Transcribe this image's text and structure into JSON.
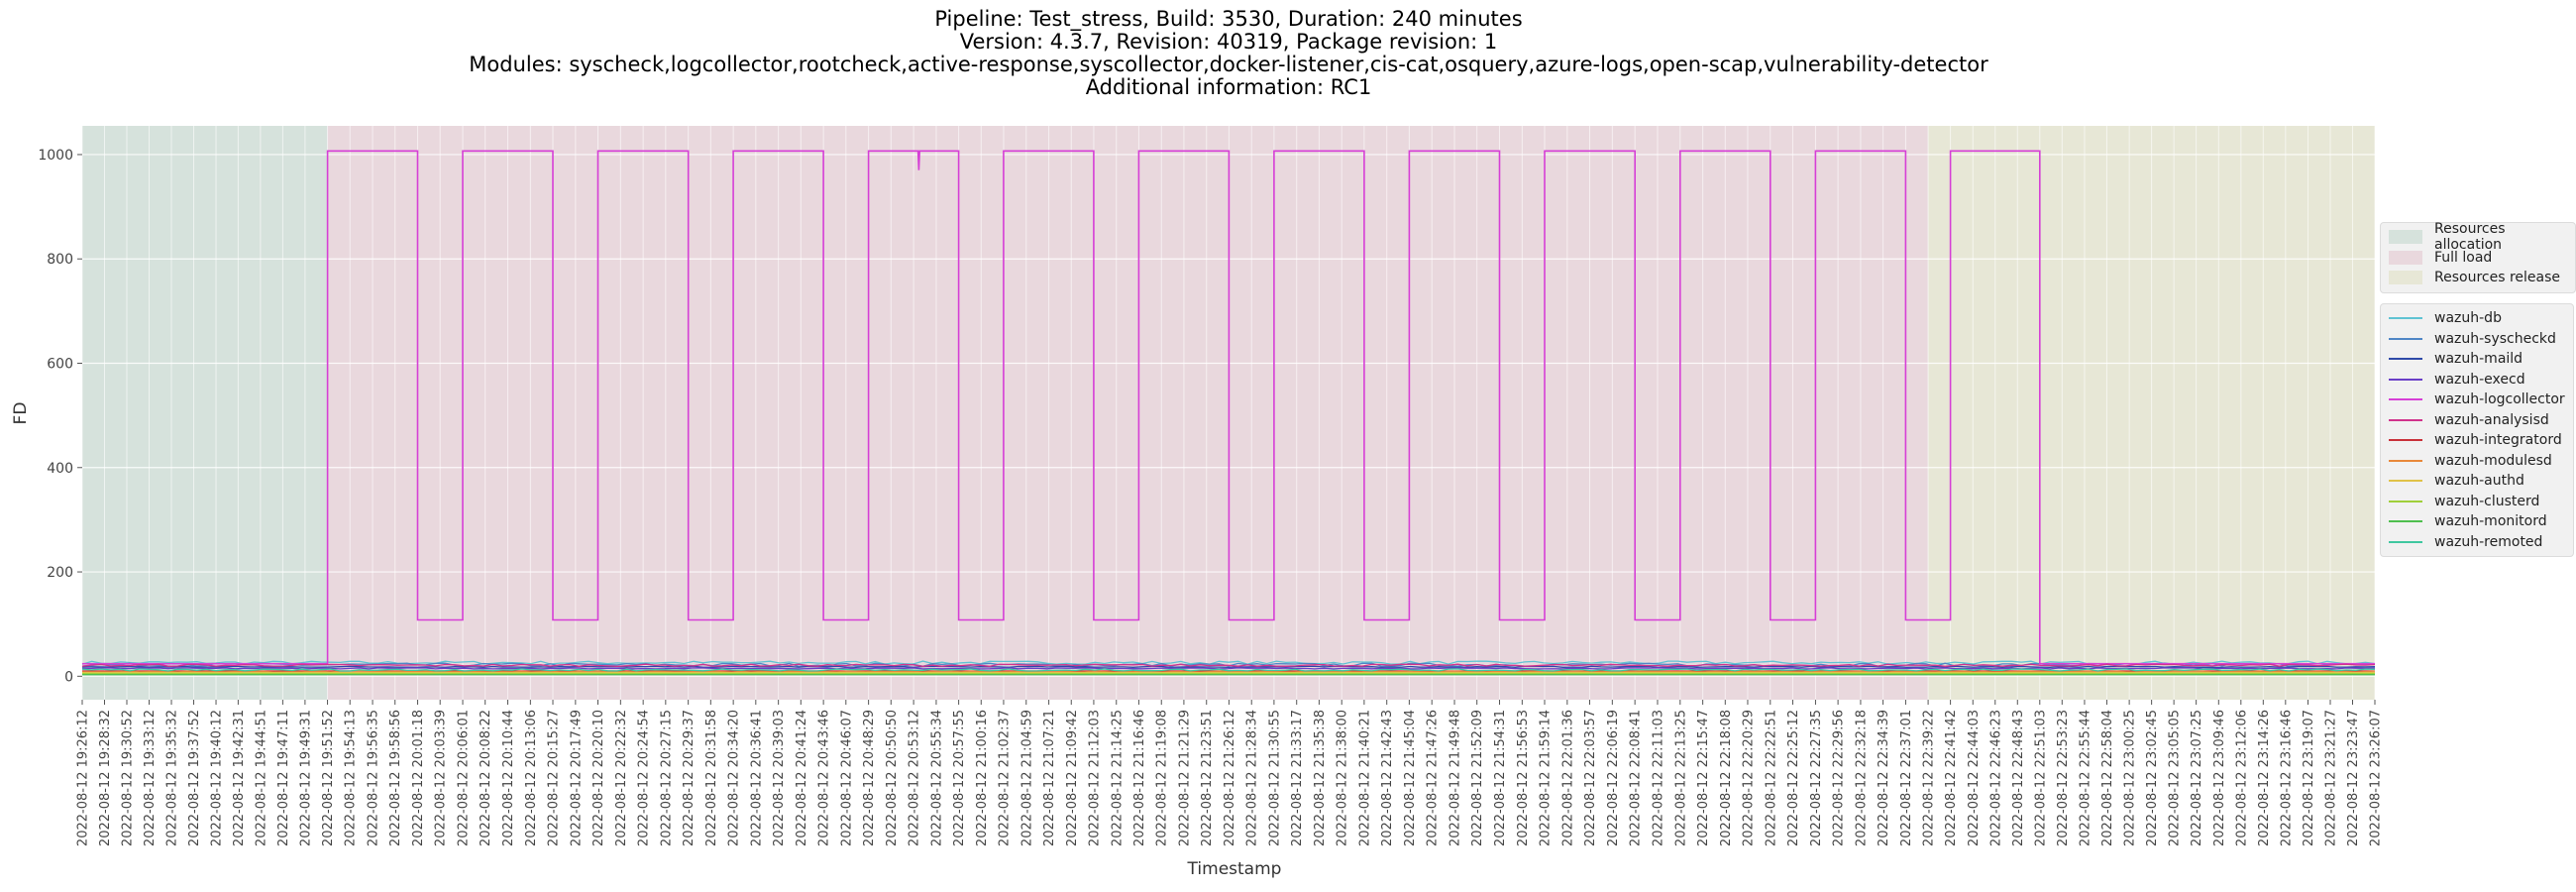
{
  "title": {
    "lines": [
      "Pipeline: Test_stress, Build: 3530, Duration: 240 minutes",
      "Version: 4.3.7, Revision: 40319, Package revision: 1",
      "Modules: syscheck,logcollector,rootcheck,active-response,syscollector,docker-listener,cis-cat,osquery,azure-logs,open-scap,vulnerability-detector",
      "Additional information: RC1"
    ]
  },
  "chart_data": {
    "type": "line",
    "xlabel": "Timestamp",
    "ylabel": "FD",
    "ylim": [
      -45,
      1055
    ],
    "yticks": [
      0,
      200,
      400,
      600,
      800,
      1000
    ],
    "grid": true,
    "legend_position": "center-right",
    "xticks": [
      "2022-08-12 19:26:12",
      "2022-08-12 19:28:32",
      "2022-08-12 19:30:52",
      "2022-08-12 19:33:12",
      "2022-08-12 19:35:32",
      "2022-08-12 19:37:52",
      "2022-08-12 19:40:12",
      "2022-08-12 19:42:31",
      "2022-08-12 19:44:51",
      "2022-08-12 19:47:11",
      "2022-08-12 19:49:31",
      "2022-08-12 19:51:52",
      "2022-08-12 19:54:13",
      "2022-08-12 19:56:35",
      "2022-08-12 19:58:56",
      "2022-08-12 20:01:18",
      "2022-08-12 20:03:39",
      "2022-08-12 20:06:01",
      "2022-08-12 20:08:22",
      "2022-08-12 20:10:44",
      "2022-08-12 20:13:06",
      "2022-08-12 20:15:27",
      "2022-08-12 20:17:49",
      "2022-08-12 20:20:10",
      "2022-08-12 20:22:32",
      "2022-08-12 20:24:54",
      "2022-08-12 20:27:15",
      "2022-08-12 20:29:37",
      "2022-08-12 20:31:58",
      "2022-08-12 20:34:20",
      "2022-08-12 20:36:41",
      "2022-08-12 20:39:03",
      "2022-08-12 20:41:24",
      "2022-08-12 20:43:46",
      "2022-08-12 20:46:07",
      "2022-08-12 20:48:29",
      "2022-08-12 20:50:50",
      "2022-08-12 20:53:12",
      "2022-08-12 20:55:34",
      "2022-08-12 20:57:55",
      "2022-08-12 21:00:16",
      "2022-08-12 21:02:37",
      "2022-08-12 21:04:59",
      "2022-08-12 21:07:21",
      "2022-08-12 21:09:42",
      "2022-08-12 21:12:03",
      "2022-08-12 21:14:25",
      "2022-08-12 21:16:46",
      "2022-08-12 21:19:08",
      "2022-08-12 21:21:29",
      "2022-08-12 21:23:51",
      "2022-08-12 21:26:12",
      "2022-08-12 21:28:34",
      "2022-08-12 21:30:55",
      "2022-08-12 21:33:17",
      "2022-08-12 21:35:38",
      "2022-08-12 21:38:00",
      "2022-08-12 21:40:21",
      "2022-08-12 21:42:43",
      "2022-08-12 21:45:04",
      "2022-08-12 21:47:26",
      "2022-08-12 21:49:48",
      "2022-08-12 21:52:09",
      "2022-08-12 21:54:31",
      "2022-08-12 21:56:53",
      "2022-08-12 21:59:14",
      "2022-08-12 22:01:36",
      "2022-08-12 22:03:57",
      "2022-08-12 22:06:19",
      "2022-08-12 22:08:41",
      "2022-08-12 22:11:03",
      "2022-08-12 22:13:25",
      "2022-08-12 22:15:47",
      "2022-08-12 22:18:08",
      "2022-08-12 22:20:29",
      "2022-08-12 22:22:51",
      "2022-08-12 22:25:12",
      "2022-08-12 22:27:35",
      "2022-08-12 22:29:56",
      "2022-08-12 22:32:18",
      "2022-08-12 22:34:39",
      "2022-08-12 22:37:01",
      "2022-08-12 22:39:22",
      "2022-08-12 22:41:42",
      "2022-08-12 22:44:03",
      "2022-08-12 22:46:23",
      "2022-08-12 22:48:43",
      "2022-08-12 22:51:03",
      "2022-08-12 22:53:23",
      "2022-08-12 22:55:44",
      "2022-08-12 22:58:04",
      "2022-08-12 23:00:25",
      "2022-08-12 23:02:45",
      "2022-08-12 23:05:05",
      "2022-08-12 23:07:25",
      "2022-08-12 23:09:46",
      "2022-08-12 23:12:06",
      "2022-08-12 23:14:26",
      "2022-08-12 23:16:46",
      "2022-08-12 23:19:07",
      "2022-08-12 23:21:27",
      "2022-08-12 23:23:47",
      "2022-08-12 23:26:07"
    ],
    "phases": [
      {
        "name": "Resources allocation",
        "start": "2022-08-12 19:26:12",
        "end": "2022-08-12 19:51:52",
        "color": "#d6e2dc"
      },
      {
        "name": "Full load",
        "start": "2022-08-12 19:51:52",
        "end": "2022-08-12 22:39:22",
        "color": "#e9d8dd"
      },
      {
        "name": "Resources release",
        "start": "2022-08-12 22:39:22",
        "end": "2022-08-12 23:26:07",
        "color": "#e7e7d6"
      }
    ],
    "series": [
      {
        "name": "wazuh-db",
        "color": "#5fc3d3",
        "baseline": 26,
        "noise": 3
      },
      {
        "name": "wazuh-syscheckd",
        "color": "#4f86c6",
        "baseline": 22,
        "noise": 3
      },
      {
        "name": "wazuh-maild",
        "color": "#2e4aa8",
        "baseline": 18,
        "noise": 1
      },
      {
        "name": "wazuh-execd",
        "color": "#6a3fc7",
        "baseline": 15,
        "noise": 1
      },
      {
        "name": "wazuh-logcollector",
        "color": "#d63fd6",
        "baseline": 24,
        "noise": 0,
        "high": 1007,
        "low": 108,
        "segments": [
          [
            "2022-08-12 19:26:12",
            24
          ],
          [
            "2022-08-12 19:51:52",
            24
          ],
          [
            "2022-08-12 19:51:52",
            1007
          ],
          [
            "2022-08-12 20:01:18",
            1007
          ],
          [
            "2022-08-12 20:01:18",
            108
          ],
          [
            "2022-08-12 20:06:01",
            108
          ],
          [
            "2022-08-12 20:06:01",
            1007
          ],
          [
            "2022-08-12 20:15:27",
            1007
          ],
          [
            "2022-08-12 20:15:27",
            108
          ],
          [
            "2022-08-12 20:20:10",
            108
          ],
          [
            "2022-08-12 20:20:10",
            1007
          ],
          [
            "2022-08-12 20:29:37",
            1007
          ],
          [
            "2022-08-12 20:29:37",
            108
          ],
          [
            "2022-08-12 20:34:20",
            108
          ],
          [
            "2022-08-12 20:34:20",
            1007
          ],
          [
            "2022-08-12 20:43:46",
            1007
          ],
          [
            "2022-08-12 20:43:46",
            108
          ],
          [
            "2022-08-12 20:48:29",
            108
          ],
          [
            "2022-08-12 20:48:29",
            1007
          ],
          [
            "2022-08-12 20:53:40",
            1007
          ],
          [
            "2022-08-12 20:53:45",
            970
          ],
          [
            "2022-08-12 20:53:50",
            1007
          ],
          [
            "2022-08-12 20:57:55",
            1007
          ],
          [
            "2022-08-12 20:57:55",
            108
          ],
          [
            "2022-08-12 21:02:37",
            108
          ],
          [
            "2022-08-12 21:02:37",
            1007
          ],
          [
            "2022-08-12 21:12:03",
            1007
          ],
          [
            "2022-08-12 21:12:03",
            108
          ],
          [
            "2022-08-12 21:16:46",
            108
          ],
          [
            "2022-08-12 21:16:46",
            1007
          ],
          [
            "2022-08-12 21:26:12",
            1007
          ],
          [
            "2022-08-12 21:26:12",
            108
          ],
          [
            "2022-08-12 21:30:55",
            108
          ],
          [
            "2022-08-12 21:30:55",
            1007
          ],
          [
            "2022-08-12 21:40:21",
            1007
          ],
          [
            "2022-08-12 21:40:21",
            108
          ],
          [
            "2022-08-12 21:45:04",
            108
          ],
          [
            "2022-08-12 21:45:04",
            1007
          ],
          [
            "2022-08-12 21:54:31",
            1007
          ],
          [
            "2022-08-12 21:54:31",
            108
          ],
          [
            "2022-08-12 21:59:14",
            108
          ],
          [
            "2022-08-12 21:59:14",
            1007
          ],
          [
            "2022-08-12 22:08:41",
            1007
          ],
          [
            "2022-08-12 22:08:41",
            108
          ],
          [
            "2022-08-12 22:13:25",
            108
          ],
          [
            "2022-08-12 22:13:25",
            1007
          ],
          [
            "2022-08-12 22:22:51",
            1007
          ],
          [
            "2022-08-12 22:22:51",
            108
          ],
          [
            "2022-08-12 22:27:35",
            108
          ],
          [
            "2022-08-12 22:27:35",
            1007
          ],
          [
            "2022-08-12 22:37:01",
            1007
          ],
          [
            "2022-08-12 22:37:01",
            108
          ],
          [
            "2022-08-12 22:41:42",
            108
          ],
          [
            "2022-08-12 22:41:42",
            1007
          ],
          [
            "2022-08-12 22:51:03",
            1007
          ],
          [
            "2022-08-12 22:51:03",
            24
          ],
          [
            "2022-08-12 23:26:07",
            24
          ]
        ]
      },
      {
        "name": "wazuh-analysisd",
        "color": "#d1338c",
        "baseline": 21,
        "noise": 2
      },
      {
        "name": "wazuh-integratord",
        "color": "#c9313a",
        "baseline": 10,
        "noise": 0
      },
      {
        "name": "wazuh-modulesd",
        "color": "#e8883a",
        "baseline": 9,
        "noise": 1
      },
      {
        "name": "wazuh-authd",
        "color": "#e0c248",
        "baseline": 7,
        "noise": 0
      },
      {
        "name": "wazuh-clusterd",
        "color": "#9fcf3a",
        "baseline": 5,
        "noise": 0
      },
      {
        "name": "wazuh-monitord",
        "color": "#4fbf4f",
        "baseline": 3,
        "noise": 0
      },
      {
        "name": "wazuh-remoted",
        "color": "#3fc7a0",
        "baseline": 12,
        "noise": 2
      }
    ]
  }
}
